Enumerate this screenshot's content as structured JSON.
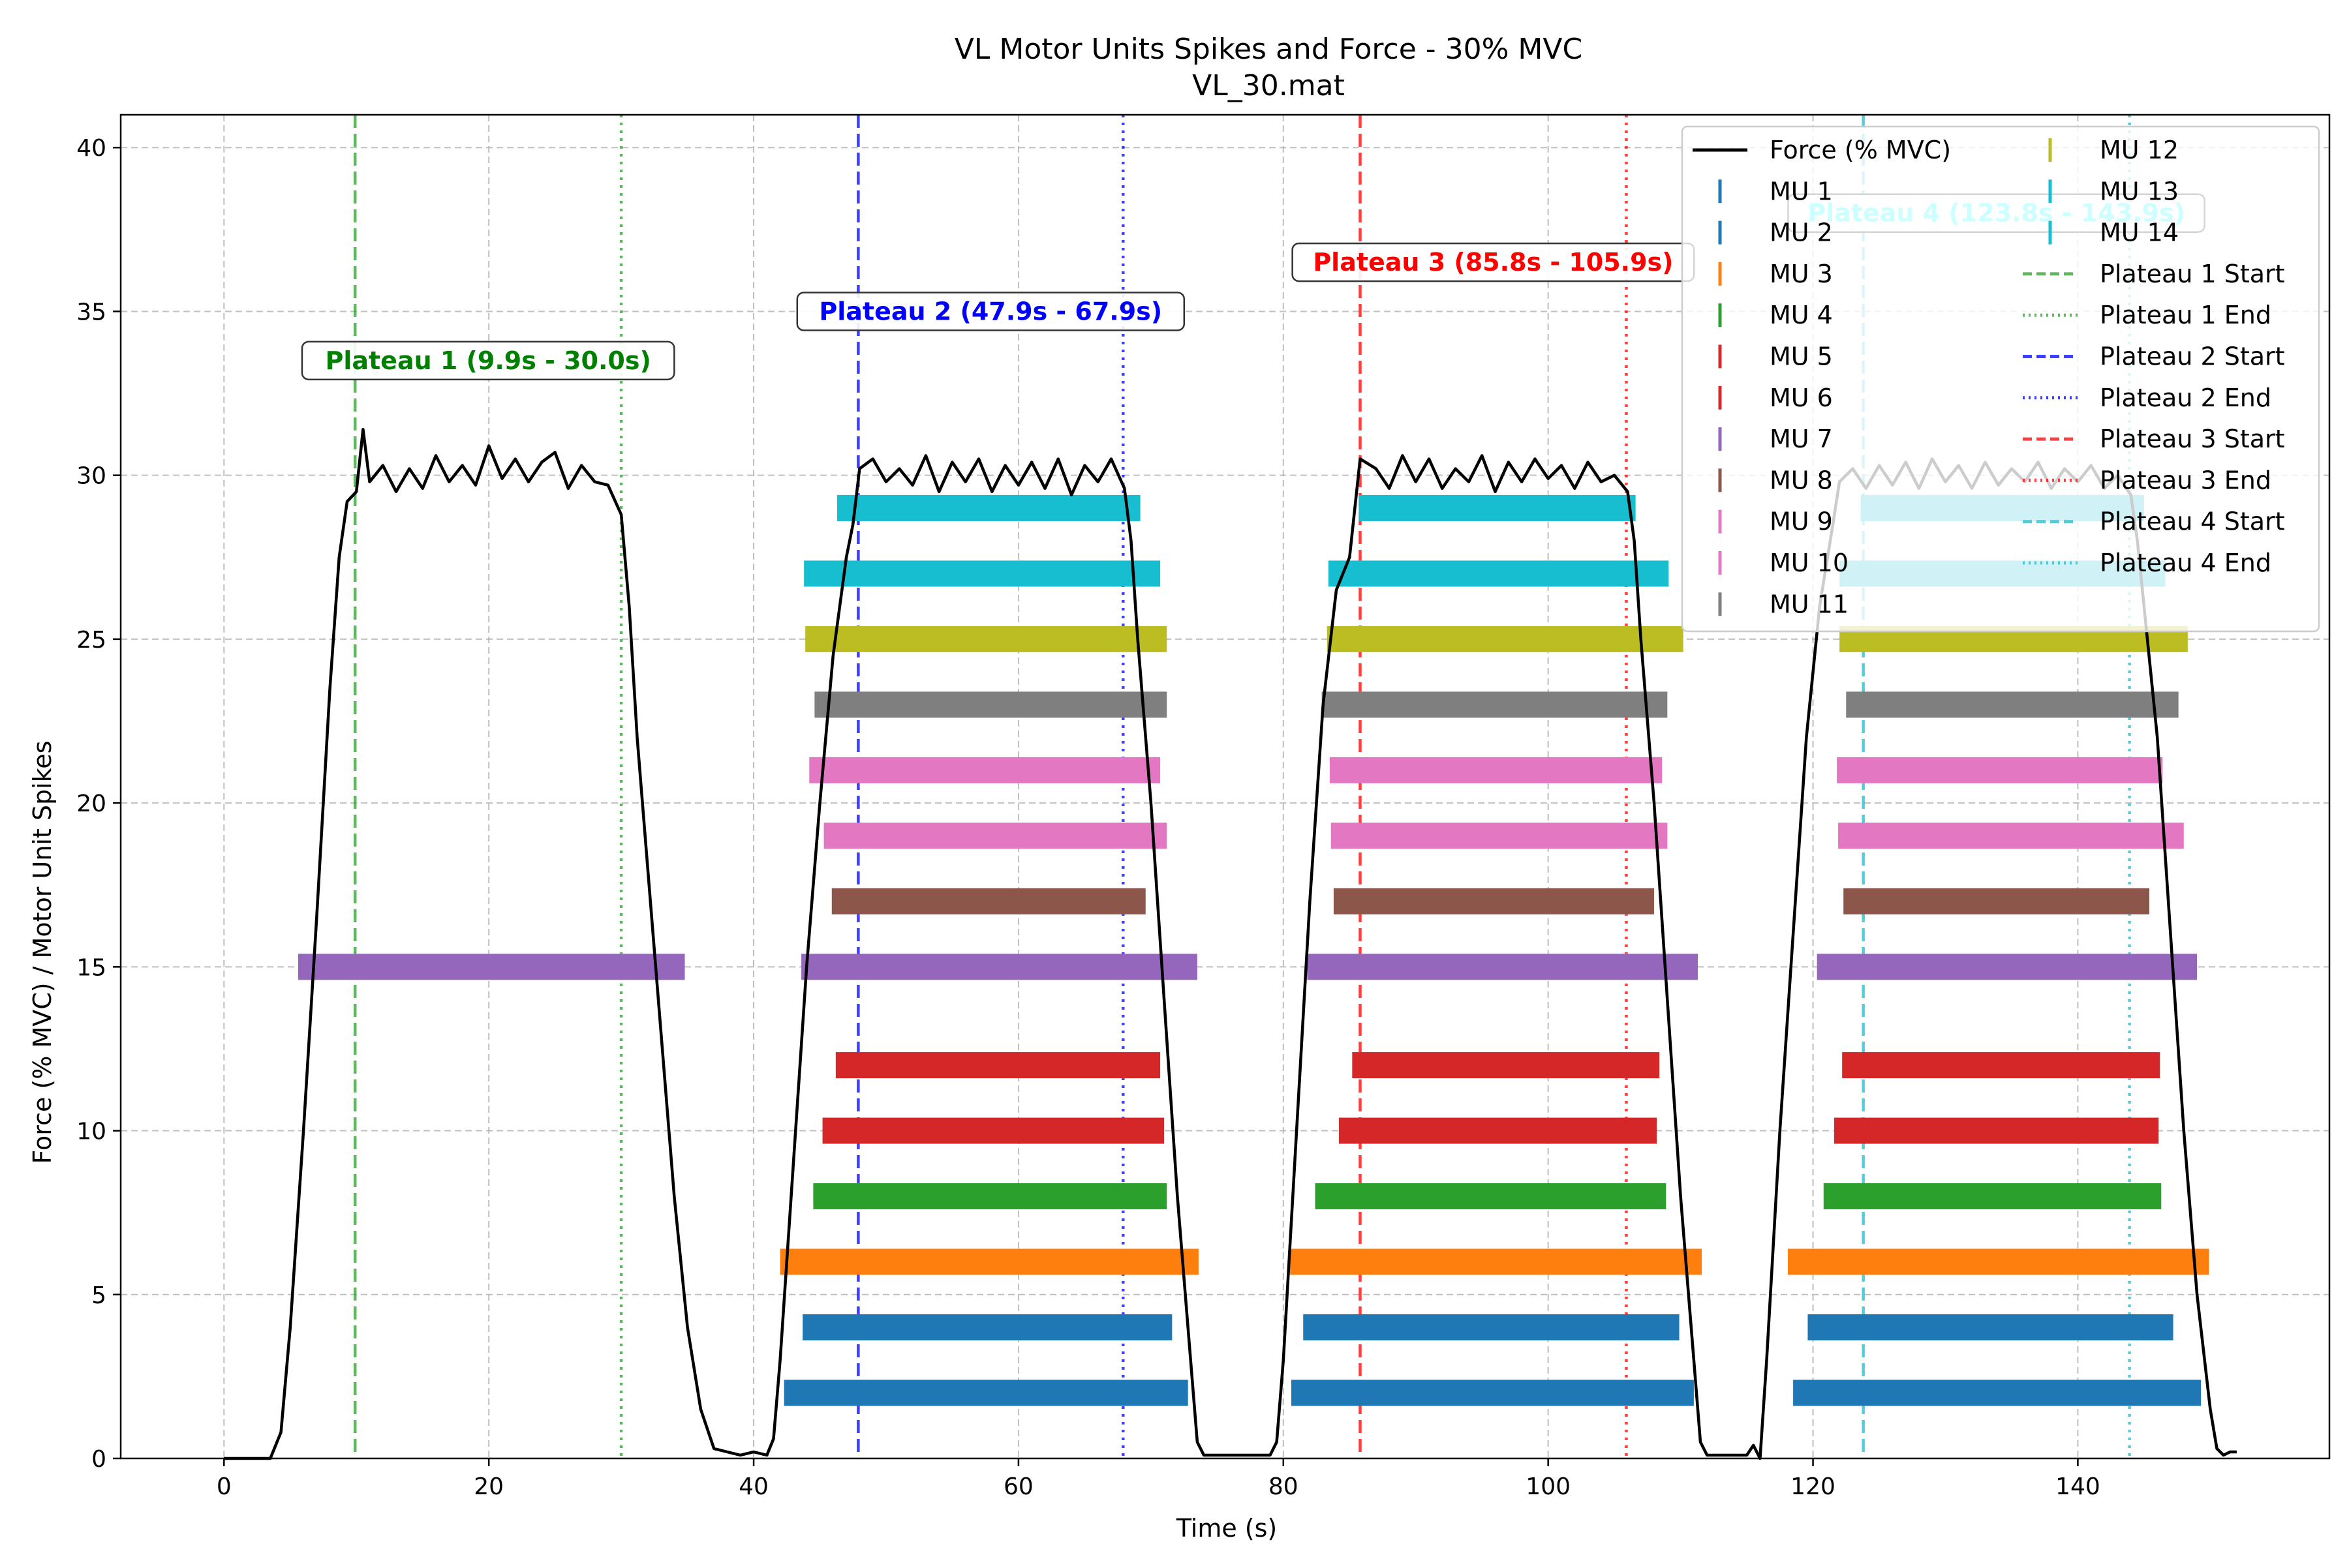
{
  "chart_data": {
    "type": "line",
    "title": "VL Motor Units Spikes and Force - 30% MVC",
    "subtitle": "VL_30.mat",
    "xlabel": "Time (s)",
    "ylabel": "Force (% MVC) / Motor Unit Spikes",
    "xlim": [
      -7.8,
      159
    ],
    "ylim": [
      0,
      41
    ],
    "xticks": [
      0,
      20,
      40,
      60,
      80,
      100,
      120,
      140
    ],
    "yticks": [
      0,
      5,
      10,
      15,
      20,
      25,
      30,
      35,
      40
    ],
    "grid": true,
    "legend_position": "top-right",
    "force": {
      "name": "Force (% MVC)",
      "color": "#000000",
      "points": [
        [
          0,
          0
        ],
        [
          3.5,
          0
        ],
        [
          4.3,
          0.8
        ],
        [
          5,
          4
        ],
        [
          6,
          10
        ],
        [
          7,
          16.5
        ],
        [
          8,
          23.5
        ],
        [
          8.7,
          27.5
        ],
        [
          9.3,
          29.2
        ],
        [
          10,
          29.5
        ],
        [
          10.5,
          31.4
        ],
        [
          11,
          29.8
        ],
        [
          12,
          30.3
        ],
        [
          13,
          29.5
        ],
        [
          14,
          30.2
        ],
        [
          15,
          29.6
        ],
        [
          16,
          30.6
        ],
        [
          17,
          29.8
        ],
        [
          18,
          30.3
        ],
        [
          19,
          29.7
        ],
        [
          20,
          30.9
        ],
        [
          21,
          29.9
        ],
        [
          22,
          30.5
        ],
        [
          23,
          29.8
        ],
        [
          24,
          30.4
        ],
        [
          25,
          30.7
        ],
        [
          26,
          29.6
        ],
        [
          27,
          30.3
        ],
        [
          28,
          29.8
        ],
        [
          29,
          29.7
        ],
        [
          30,
          28.8
        ],
        [
          30.6,
          26
        ],
        [
          31.2,
          22
        ],
        [
          32,
          18
        ],
        [
          33,
          13
        ],
        [
          34,
          8
        ],
        [
          35,
          4
        ],
        [
          36,
          1.5
        ],
        [
          37,
          0.3
        ],
        [
          38,
          0.2
        ],
        [
          39,
          0.1
        ],
        [
          40,
          0.2
        ],
        [
          41,
          0.1
        ],
        [
          41.5,
          0.6
        ],
        [
          42,
          3
        ],
        [
          43,
          9
        ],
        [
          44,
          15
        ],
        [
          45,
          20
        ],
        [
          46,
          24.5
        ],
        [
          47,
          27.5
        ],
        [
          47.5,
          28.5
        ],
        [
          48,
          30.2
        ],
        [
          49,
          30.5
        ],
        [
          50,
          29.8
        ],
        [
          51,
          30.2
        ],
        [
          52,
          29.7
        ],
        [
          53,
          30.6
        ],
        [
          54,
          29.5
        ],
        [
          55,
          30.4
        ],
        [
          56,
          29.8
        ],
        [
          57,
          30.5
        ],
        [
          58,
          29.5
        ],
        [
          59,
          30.3
        ],
        [
          60,
          29.7
        ],
        [
          61,
          30.4
        ],
        [
          62,
          29.6
        ],
        [
          63,
          30.5
        ],
        [
          64,
          29.4
        ],
        [
          65,
          30.3
        ],
        [
          66,
          29.8
        ],
        [
          67,
          30.5
        ],
        [
          68,
          29.6
        ],
        [
          68.5,
          28
        ],
        [
          69,
          25
        ],
        [
          70,
          20
        ],
        [
          71,
          14
        ],
        [
          72,
          8
        ],
        [
          73,
          3
        ],
        [
          73.5,
          0.5
        ],
        [
          74,
          0.1
        ],
        [
          79,
          0.1
        ],
        [
          79.5,
          0.5
        ],
        [
          80,
          3
        ],
        [
          81,
          10
        ],
        [
          82,
          17
        ],
        [
          83,
          23
        ],
        [
          84,
          26.5
        ],
        [
          85,
          27.5
        ],
        [
          85.8,
          30.5
        ],
        [
          87,
          30.2
        ],
        [
          88,
          29.6
        ],
        [
          89,
          30.6
        ],
        [
          90,
          29.8
        ],
        [
          91,
          30.5
        ],
        [
          92,
          29.6
        ],
        [
          93,
          30.2
        ],
        [
          94,
          29.8
        ],
        [
          95,
          30.6
        ],
        [
          96,
          29.5
        ],
        [
          97,
          30.4
        ],
        [
          98,
          29.8
        ],
        [
          99,
          30.5
        ],
        [
          100,
          29.9
        ],
        [
          101,
          30.3
        ],
        [
          102,
          29.6
        ],
        [
          103,
          30.4
        ],
        [
          104,
          29.8
        ],
        [
          105,
          30
        ],
        [
          106,
          29.5
        ],
        [
          106.5,
          28
        ],
        [
          107,
          25
        ],
        [
          108,
          20
        ],
        [
          109,
          14
        ],
        [
          110,
          8
        ],
        [
          111,
          3
        ],
        [
          111.5,
          0.5
        ],
        [
          112,
          0.1
        ],
        [
          115,
          0.1
        ],
        [
          115.5,
          0.4
        ],
        [
          116,
          0
        ],
        [
          116.5,
          3
        ],
        [
          117.5,
          10
        ],
        [
          118.5,
          16
        ],
        [
          119.5,
          22
        ],
        [
          120.5,
          26
        ],
        [
          121.5,
          28.5
        ],
        [
          122,
          29.8
        ],
        [
          123,
          30.2
        ],
        [
          124,
          29.6
        ],
        [
          125,
          30.3
        ],
        [
          126,
          29.7
        ],
        [
          127,
          30.4
        ],
        [
          128,
          29.6
        ],
        [
          129,
          30.5
        ],
        [
          130,
          29.8
        ],
        [
          131,
          30.3
        ],
        [
          132,
          29.6
        ],
        [
          133,
          30.4
        ],
        [
          134,
          29.7
        ],
        [
          135,
          30.2
        ],
        [
          136,
          29.8
        ],
        [
          137,
          30.4
        ],
        [
          138,
          29.6
        ],
        [
          139,
          30.2
        ],
        [
          140,
          29.8
        ],
        [
          141,
          30.3
        ],
        [
          142,
          29.6
        ],
        [
          143,
          30
        ],
        [
          144,
          29.4
        ],
        [
          144.5,
          28
        ],
        [
          145,
          26
        ],
        [
          146,
          22
        ],
        [
          147,
          16
        ],
        [
          148,
          10
        ],
        [
          149,
          5
        ],
        [
          150,
          1.5
        ],
        [
          150.5,
          0.3
        ],
        [
          151,
          0.1
        ],
        [
          151.5,
          0.2
        ],
        [
          152,
          0.2
        ]
      ]
    },
    "motor_units": [
      {
        "name": "MU 1",
        "y": 2,
        "color": "#1f77b4",
        "intervals": [
          [
            42.3,
            72.8
          ],
          [
            80.6,
            111
          ],
          [
            118.5,
            149.3
          ]
        ]
      },
      {
        "name": "MU 2",
        "y": 4,
        "color": "#1f77b4",
        "intervals": [
          [
            43.7,
            71.6
          ],
          [
            81.5,
            109.9
          ],
          [
            119.6,
            147.2
          ]
        ]
      },
      {
        "name": "MU 3",
        "y": 6,
        "color": "#ff7f0e",
        "intervals": [
          [
            42,
            73.6
          ],
          [
            80.5,
            111.6
          ],
          [
            118.1,
            149.9
          ]
        ]
      },
      {
        "name": "MU 4",
        "y": 8,
        "color": "#2ca02c",
        "intervals": [
          [
            44.5,
            71.2
          ],
          [
            82.4,
            108.9
          ],
          [
            120.8,
            146.3
          ]
        ]
      },
      {
        "name": "MU 5",
        "y": 10,
        "color": "#d62728",
        "intervals": [
          [
            45.2,
            71
          ],
          [
            84.2,
            108.2
          ],
          [
            121.6,
            146.1
          ]
        ]
      },
      {
        "name": "MU 6",
        "y": 12,
        "color": "#d62728",
        "intervals": [
          [
            46.2,
            70.7
          ],
          [
            85.2,
            108.4
          ],
          [
            122.2,
            146.2
          ]
        ]
      },
      {
        "name": "MU 7",
        "y": 15,
        "color": "#9467bd",
        "intervals": [
          [
            5.6,
            34.8
          ],
          [
            43.6,
            73.5
          ],
          [
            81.8,
            111.3
          ],
          [
            120.3,
            149
          ]
        ]
      },
      {
        "name": "MU 8",
        "y": 17,
        "color": "#8c564b",
        "intervals": [
          [
            45.9,
            69.6
          ],
          [
            83.8,
            108
          ],
          [
            122.3,
            145.4
          ]
        ]
      },
      {
        "name": "MU 9",
        "y": 19,
        "color": "#e377c2",
        "intervals": [
          [
            45.3,
            71.2
          ],
          [
            83.6,
            109
          ],
          [
            121.9,
            148
          ]
        ]
      },
      {
        "name": "MU 10",
        "y": 21,
        "color": "#e377c2",
        "intervals": [
          [
            44.2,
            70.7
          ],
          [
            83.5,
            108.6
          ],
          [
            121.8,
            146.4
          ]
        ]
      },
      {
        "name": "MU 11",
        "y": 23,
        "color": "#7f7f7f",
        "intervals": [
          [
            44.6,
            71.2
          ],
          [
            82.9,
            109
          ],
          [
            122.5,
            147.6
          ]
        ]
      },
      {
        "name": "MU 12",
        "y": 25,
        "color": "#bcbd22",
        "intervals": [
          [
            43.9,
            71.2
          ],
          [
            83.3,
            110.2
          ],
          [
            122,
            148.3
          ]
        ]
      },
      {
        "name": "MU 13",
        "y": 27,
        "color": "#17becf",
        "intervals": [
          [
            43.8,
            70.7
          ],
          [
            83.4,
            109.1
          ],
          [
            122,
            146.6
          ]
        ]
      },
      {
        "name": "MU 14",
        "y": 29,
        "color": "#17becf",
        "intervals": [
          [
            46.3,
            69.2
          ],
          [
            85.7,
            106.6
          ],
          [
            123.6,
            145
          ]
        ]
      }
    ],
    "plateaus": [
      {
        "label": "Plateau 1 (9.9s - 30.0s)",
        "start": 9.9,
        "end": 30.0,
        "label_y": 33.5,
        "color": "#008000",
        "line_color": "#2ca02c"
      },
      {
        "label": "Plateau 2 (47.9s - 67.9s)",
        "start": 47.9,
        "end": 67.9,
        "label_y": 35,
        "color": "#0000ff",
        "line_color": "#0000ff"
      },
      {
        "label": "Plateau 3 (85.8s - 105.9s)",
        "start": 85.8,
        "end": 105.9,
        "label_y": 36.5,
        "color": "#ff0000",
        "line_color": "#ff0000"
      },
      {
        "label": "Plateau 4 (123.8s - 143.9s)",
        "start": 123.8,
        "end": 143.9,
        "label_y": 38,
        "color": "#00ffff",
        "line_color": "#17becf"
      }
    ],
    "legend": {
      "col1": [
        "Force (% MVC)",
        "MU 1",
        "MU 2",
        "MU 3",
        "MU 4",
        "MU 5",
        "MU 6",
        "MU 7",
        "MU 8",
        "MU 9",
        "MU 10",
        "MU 11"
      ],
      "col2": [
        "MU 12",
        "MU 13",
        "MU 14",
        "Plateau 1 Start",
        "Plateau 1 End",
        "Plateau 2 Start",
        "Plateau 2 End",
        "Plateau 3 Start",
        "Plateau 3 End",
        "Plateau 4 Start",
        "Plateau 4 End"
      ]
    }
  }
}
